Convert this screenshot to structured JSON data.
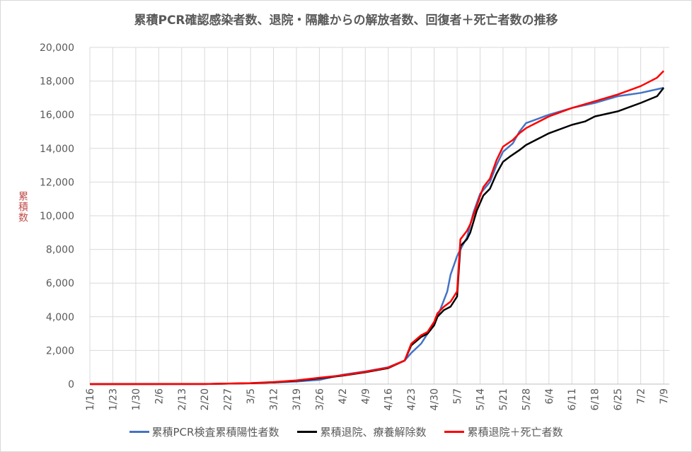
{
  "chart_data": {
    "type": "line",
    "title": "累積PCR確認感染者数、退院・隔離からの解放者数、回復者＋死亡者数の推移",
    "xlabel": "",
    "ylabel": "累積数",
    "ylim": [
      0,
      20000
    ],
    "ytick_labels": [
      "0",
      "2,000",
      "4,000",
      "6,000",
      "8,000",
      "10,000",
      "12,000",
      "14,000",
      "16,000",
      "18,000",
      "20,000"
    ],
    "yticks": [
      0,
      2000,
      4000,
      6000,
      8000,
      10000,
      12000,
      14000,
      16000,
      18000,
      20000
    ],
    "xtick_labels": [
      "1/16",
      "1/23",
      "1/30",
      "2/6",
      "2/13",
      "2/20",
      "2/27",
      "3/5",
      "3/12",
      "3/19",
      "3/26",
      "4/2",
      "4/9",
      "4/16",
      "4/23",
      "4/30",
      "5/7",
      "5/14",
      "5/21",
      "5/28",
      "6/4",
      "6/11",
      "6/18",
      "6/25",
      "7/2",
      "7/9"
    ],
    "grid": true,
    "legend_position": "bottom",
    "series": [
      {
        "name": "累積PCR検査累積陽性者数",
        "color": "#4472c4",
        "points": [
          [
            "1/16",
            0
          ],
          [
            "2/20",
            5
          ],
          [
            "3/5",
            50
          ],
          [
            "3/12",
            100
          ],
          [
            "3/19",
            150
          ],
          [
            "3/26",
            250
          ],
          [
            "4/2",
            550
          ],
          [
            "4/9",
            750
          ],
          [
            "4/16",
            1000
          ],
          [
            "4/21",
            1400
          ],
          [
            "4/23",
            1850
          ],
          [
            "4/26",
            2400
          ],
          [
            "4/28",
            3000
          ],
          [
            "4/30",
            3500
          ],
          [
            "5/2",
            4500
          ],
          [
            "5/4",
            5500
          ],
          [
            "5/5",
            6500
          ],
          [
            "5/7",
            7600
          ],
          [
            "5/8",
            8000
          ],
          [
            "5/10",
            8700
          ],
          [
            "5/12",
            10200
          ],
          [
            "5/14",
            11300
          ],
          [
            "5/17",
            12000
          ],
          [
            "5/19",
            13000
          ],
          [
            "5/21",
            13800
          ],
          [
            "5/24",
            14300
          ],
          [
            "5/26",
            15000
          ],
          [
            "5/28",
            15500
          ],
          [
            "6/4",
            16000
          ],
          [
            "6/11",
            16400
          ],
          [
            "6/18",
            16700
          ],
          [
            "6/25",
            17100
          ],
          [
            "7/2",
            17300
          ],
          [
            "7/9",
            17600
          ]
        ]
      },
      {
        "name": "累積退院、療養解除数",
        "color": "#000000",
        "points": [
          [
            "1/16",
            0
          ],
          [
            "2/20",
            5
          ],
          [
            "3/5",
            50
          ],
          [
            "3/12",
            100
          ],
          [
            "3/19",
            200
          ],
          [
            "3/26",
            350
          ],
          [
            "4/2",
            500
          ],
          [
            "4/9",
            700
          ],
          [
            "4/16",
            950
          ],
          [
            "4/21",
            1400
          ],
          [
            "4/23",
            2300
          ],
          [
            "4/26",
            2800
          ],
          [
            "4/28",
            3000
          ],
          [
            "4/30",
            3500
          ],
          [
            "5/1",
            4000
          ],
          [
            "5/3",
            4400
          ],
          [
            "5/5",
            4600
          ],
          [
            "5/7",
            5200
          ],
          [
            "5/8",
            8200
          ],
          [
            "5/10",
            8600
          ],
          [
            "5/11",
            9000
          ],
          [
            "5/13",
            10300
          ],
          [
            "5/15",
            11200
          ],
          [
            "5/17",
            11600
          ],
          [
            "5/19",
            12500
          ],
          [
            "5/21",
            13200
          ],
          [
            "5/23",
            13500
          ],
          [
            "5/26",
            13900
          ],
          [
            "5/28",
            14200
          ],
          [
            "6/4",
            14900
          ],
          [
            "6/11",
            15400
          ],
          [
            "6/15",
            15600
          ],
          [
            "6/18",
            15900
          ],
          [
            "6/25",
            16200
          ],
          [
            "7/2",
            16700
          ],
          [
            "7/7",
            17100
          ],
          [
            "7/9",
            17600
          ]
        ]
      },
      {
        "name": "累積退院＋死亡者数",
        "color": "#ff0000",
        "points": [
          [
            "1/16",
            0
          ],
          [
            "2/20",
            5
          ],
          [
            "3/5",
            60
          ],
          [
            "3/12",
            120
          ],
          [
            "3/19",
            220
          ],
          [
            "3/26",
            380
          ],
          [
            "4/2",
            520
          ],
          [
            "4/9",
            730
          ],
          [
            "4/16",
            980
          ],
          [
            "4/21",
            1400
          ],
          [
            "4/23",
            2400
          ],
          [
            "4/26",
            2900
          ],
          [
            "4/28",
            3100
          ],
          [
            "4/30",
            3700
          ],
          [
            "5/1",
            4200
          ],
          [
            "5/3",
            4600
          ],
          [
            "5/5",
            4900
          ],
          [
            "5/7",
            5500
          ],
          [
            "5/8",
            8600
          ],
          [
            "5/10",
            9100
          ],
          [
            "5/11",
            9500
          ],
          [
            "5/13",
            10600
          ],
          [
            "5/15",
            11700
          ],
          [
            "5/17",
            12200
          ],
          [
            "5/19",
            13300
          ],
          [
            "5/21",
            14100
          ],
          [
            "5/24",
            14500
          ],
          [
            "5/26",
            14900
          ],
          [
            "5/28",
            15200
          ],
          [
            "6/4",
            15900
          ],
          [
            "6/11",
            16400
          ],
          [
            "6/18",
            16800
          ],
          [
            "6/25",
            17200
          ],
          [
            "7/2",
            17700
          ],
          [
            "7/7",
            18200
          ],
          [
            "7/9",
            18600
          ]
        ]
      }
    ]
  }
}
